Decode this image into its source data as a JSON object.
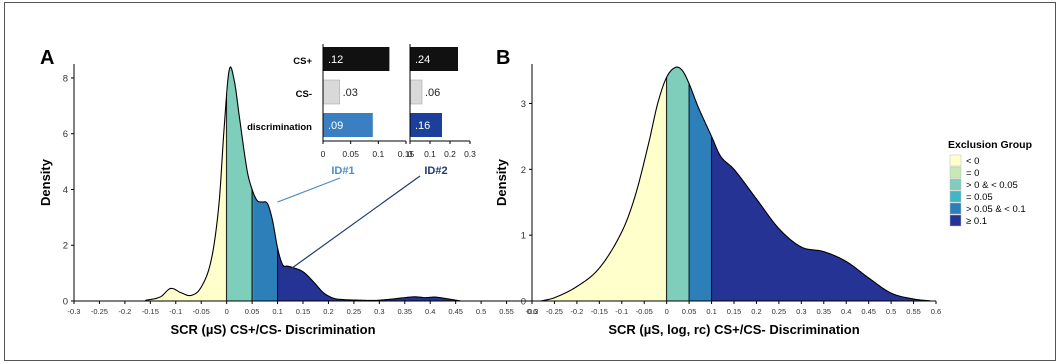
{
  "panel_a_label": "A",
  "panel_b_label": "B",
  "colors": {
    "lt0": "#ffffcc",
    "eq0": "#c7e9b4",
    "gt0_lt005": "#7fcdbb",
    "eq005": "#41b6c4",
    "gt005_lt01": "#2c7fb8",
    "ge01": "#253494",
    "bar_cs_plus": "#111111",
    "bar_cs_minus": "#d9d9d9",
    "bar_disc_id1": "#3a7fc1",
    "bar_disc_id2": "#1c3f9c",
    "id1_line": "#4a90c8",
    "id2_line": "#1f3b73"
  },
  "legend": {
    "title": "Exclusion Group",
    "items": [
      {
        "label": "< 0",
        "color": "#ffffcc"
      },
      {
        "label": "= 0",
        "color": "#c7e9b4"
      },
      {
        "label": "> 0 & < 0.05",
        "color": "#7fcdbb"
      },
      {
        "label": "= 0.05",
        "color": "#41b6c4"
      },
      {
        "label": "> 0.05 & < 0.1",
        "color": "#2c7fb8"
      },
      {
        "label": "≥ 0.1",
        "color": "#253494"
      }
    ]
  },
  "chart_data": [
    {
      "type": "area",
      "panel": "A",
      "xlabel": "SCR (µS) CS+/CS- Discrimination",
      "ylabel": "Density",
      "xlim": [
        -0.3,
        0.6
      ],
      "ylim": [
        0,
        8.5
      ],
      "x_ticks": [
        "-0.3",
        "-0.25",
        "-0.2",
        "-0.15",
        "-0.1",
        "-0.05",
        "0",
        "0.05",
        "0.1",
        "0.15",
        "0.2",
        "0.25",
        "0.3",
        "0.35",
        "0.4",
        "0.45",
        "0.5",
        "0.55",
        "0.6"
      ],
      "y_ticks": [
        "0",
        "2",
        "4",
        "6",
        "8"
      ],
      "y_tick_values": [
        0,
        2,
        4,
        6,
        8
      ],
      "boundaries": [
        0,
        0.05,
        0.1
      ],
      "x": [
        -0.16,
        -0.13,
        -0.11,
        -0.09,
        -0.07,
        -0.05,
        -0.03,
        -0.015,
        -0.005,
        0.005,
        0.015,
        0.025,
        0.04,
        0.05,
        0.06,
        0.07,
        0.08,
        0.09,
        0.1,
        0.11,
        0.12,
        0.13,
        0.15,
        0.17,
        0.19,
        0.21,
        0.23,
        0.26,
        0.29,
        0.32,
        0.35,
        0.37,
        0.39,
        0.41,
        0.43,
        0.45,
        0.46
      ],
      "y": [
        0.02,
        0.15,
        0.45,
        0.3,
        0.2,
        0.5,
        1.5,
        3.5,
        6.2,
        8.3,
        7.9,
        6.6,
        4.7,
        4.0,
        3.6,
        3.55,
        3.5,
        2.9,
        1.9,
        1.3,
        1.25,
        1.2,
        1.05,
        0.7,
        0.3,
        0.1,
        0.05,
        0.03,
        0.02,
        0.06,
        0.12,
        0.15,
        0.12,
        0.14,
        0.09,
        0.03,
        0.0
      ],
      "inset": {
        "row_labels": [
          "CS+",
          "CS-",
          "discrimination"
        ],
        "id1": {
          "label": "ID#1",
          "values": [
            0.12,
            0.03,
            0.09
          ],
          "value_labels": [
            ".12",
            ".03",
            ".09"
          ],
          "xlim": [
            0,
            0.15
          ],
          "ticks": [
            "0",
            "0.05",
            "0.1",
            "0.15"
          ],
          "pointer_x": 0.1,
          "pointer_density": 3.55
        },
        "id2": {
          "label": "ID#2",
          "values": [
            0.24,
            0.06,
            0.16
          ],
          "value_labels": [
            ".24",
            ".06",
            ".16"
          ],
          "xlim": [
            0,
            0.3
          ],
          "ticks": [
            "0",
            "0.1",
            "0.2",
            "0.3"
          ],
          "pointer_x": 0.16,
          "pointer_density": 1.05
        }
      }
    },
    {
      "type": "area",
      "panel": "B",
      "xlabel": "SCR (µS, log, rc) CS+/CS- Discrimination",
      "ylabel": "Density",
      "xlim": [
        -0.3,
        0.6
      ],
      "ylim": [
        0,
        3.6
      ],
      "x_ticks": [
        "-0.3",
        "-0.25",
        "-0.2",
        "-0.15",
        "-0.1",
        "-0.05",
        "0",
        "0.05",
        "0.1",
        "0.15",
        "0.2",
        "0.25",
        "0.3",
        "0.35",
        "0.4",
        "0.45",
        "0.5",
        "0.55",
        "0.6"
      ],
      "y_ticks": [
        "0",
        "1",
        "2",
        "3"
      ],
      "y_tick_values": [
        0,
        1,
        2,
        3
      ],
      "boundaries": [
        0,
        0.05,
        0.1
      ],
      "x": [
        -0.28,
        -0.25,
        -0.2,
        -0.15,
        -0.1,
        -0.07,
        -0.04,
        -0.02,
        0.0,
        0.02,
        0.035,
        0.05,
        0.07,
        0.1,
        0.12,
        0.15,
        0.2,
        0.25,
        0.3,
        0.35,
        0.4,
        0.45,
        0.5,
        0.55,
        0.59
      ],
      "y": [
        0.0,
        0.05,
        0.22,
        0.5,
        1.05,
        1.6,
        2.4,
        3.0,
        3.4,
        3.55,
        3.5,
        3.3,
        2.95,
        2.5,
        2.2,
        2.0,
        1.55,
        1.1,
        0.82,
        0.75,
        0.6,
        0.35,
        0.12,
        0.03,
        0.0
      ]
    }
  ]
}
